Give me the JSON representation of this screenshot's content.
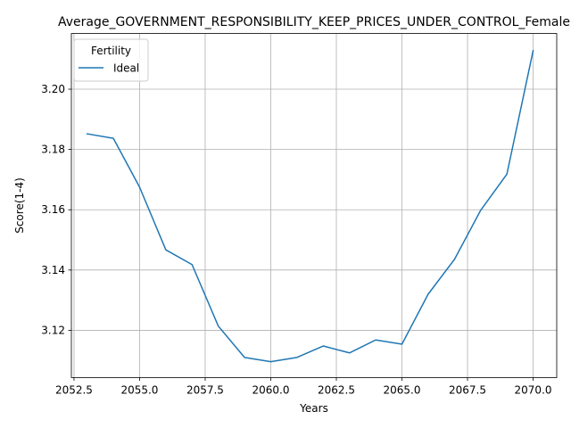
{
  "chart_data": {
    "type": "line",
    "title": "Average_GOVERNMENT_RESPONSIBILITY_KEEP_PRICES_UNDER_CONTROL_Female",
    "xlabel": "Years",
    "ylabel": "Score(1-4)",
    "xlim": [
      2052.4,
      2070.9
    ],
    "ylim": [
      3.1043,
      3.2185
    ],
    "x_ticks": [
      2052.5,
      2055.0,
      2057.5,
      2060.0,
      2062.5,
      2065.0,
      2067.5,
      2070.0
    ],
    "x_tick_labels": [
      "2052.5",
      "2055.0",
      "2057.5",
      "2060.0",
      "2062.5",
      "2065.0",
      "2067.5",
      "2070.0"
    ],
    "y_ticks": [
      3.12,
      3.14,
      3.16,
      3.18,
      3.2
    ],
    "y_tick_labels": [
      "3.12",
      "3.14",
      "3.16",
      "3.18",
      "3.20"
    ],
    "grid": true,
    "legend": {
      "title": "Fertility",
      "placement": "top-left"
    },
    "series": [
      {
        "name": "Ideal",
        "color": "#1f77b4",
        "x": [
          2053,
          2054,
          2055,
          2056,
          2057,
          2058,
          2059,
          2060,
          2061,
          2062,
          2063,
          2064,
          2065,
          2066,
          2067,
          2068,
          2069,
          2070
        ],
        "y": [
          3.1852,
          3.1837,
          3.1675,
          3.1467,
          3.1418,
          3.1214,
          3.111,
          3.1096,
          3.111,
          3.1148,
          3.1125,
          3.1168,
          3.1154,
          3.132,
          3.1435,
          3.1598,
          3.1718,
          3.2128
        ]
      }
    ]
  }
}
